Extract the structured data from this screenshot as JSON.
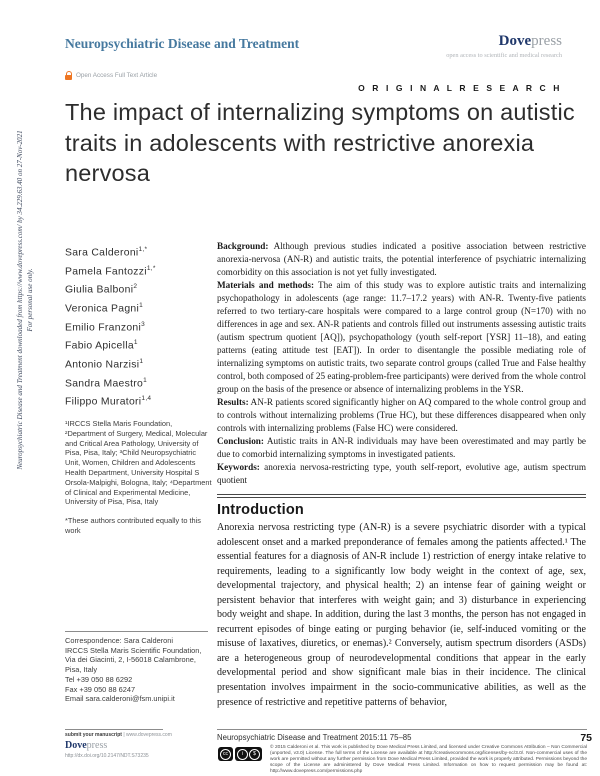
{
  "header": {
    "journal": "Neuropsychiatric Disease and Treatment",
    "brand_dove": "Dove",
    "brand_press": "press",
    "tagline": "open access to scientific and medical research",
    "open_access_label": "Open Access Full Text Article",
    "article_type": "O R I G I N A L   R E S E A R C H"
  },
  "title": "The impact of internalizing symptoms on autistic traits in adolescents with restrictive anorexia nervosa",
  "sidebar": {
    "authors": [
      {
        "name": "Sara Calderoni",
        "sup": "1,*"
      },
      {
        "name": "Pamela Fantozzi",
        "sup": "1,*"
      },
      {
        "name": "Giulia Balboni",
        "sup": "2"
      },
      {
        "name": "Veronica Pagni",
        "sup": "1"
      },
      {
        "name": "Emilio Franzoni",
        "sup": "3"
      },
      {
        "name": "Fabio Apicella",
        "sup": "1"
      },
      {
        "name": "Antonio Narzisi",
        "sup": "1"
      },
      {
        "name": "Sandra Maestro",
        "sup": "1"
      },
      {
        "name": "Filippo Muratori",
        "sup": "1,4"
      }
    ],
    "affiliations": "¹IRCCS Stella Maris Foundation, ²Department of Surgery, Medical, Molecular and Critical Area Pathology, University of Pisa, Pisa, Italy; ³Child Neuropsychiatric Unit, Women, Children and Adolescents Health Department, University Hospital S Orsola-Malpighi, Bologna, Italy; ⁴Department of Clinical and Experimental Medicine, University of Pisa, Pisa, Italy",
    "contrib_note": "*These authors contributed equally to this work",
    "correspondence_lines": [
      "Correspondence: Sara Calderoni",
      "IRCCS Stella Maris Scientific Foundation,",
      "Via dei Giacinti, 2, I-56018 Calambrone,",
      "Pisa, Italy",
      "Tel +39 050 88 6292",
      "Fax +39 050 88 6247",
      "Email sara.calderoni@fsm.unipi.it"
    ]
  },
  "abstract": {
    "sections": [
      {
        "label": "Background:",
        "text": " Although previous studies indicated a positive association between restrictive anorexia-nervosa (AN-R) and autistic traits, the potential interference of psychiatric internalizing comorbidity on this association is not yet fully investigated."
      },
      {
        "label": "Materials and methods:",
        "text": " The aim of this study was to explore autistic traits and internalizing psychopathology in adolescents (age range: 11.7–17.2 years) with AN-R. Twenty-five patients referred to two tertiary-care hospitals were compared to a large control group (N=170) with no differences in age and sex. AN-R patients and controls filled out instruments assessing autistic traits (autism spectrum quotient [AQ]), psychopathology (youth self-report [YSR] 11–18), and eating patterns (eating attitude test [EAT]). In order to disentangle the possible mediating role of internalizing symptoms on autistic traits, two separate control groups (called True and False healthy control, both composed of 25 eating-problem-free participants) were derived from the whole control group on the basis of the presence or absence of internalizing problems in the YSR."
      },
      {
        "label": "Results:",
        "text": " AN-R patients scored significantly higher on AQ compared to the whole control group and to controls without internalizing problems (True HC), but these differences disappeared when only controls with internalizing problems (False HC) were considered."
      },
      {
        "label": "Conclusion:",
        "text": " Autistic traits in AN-R individuals may have been overestimated and may partly be due to comorbid internalizing symptoms in investigated patients."
      },
      {
        "label": "Keywords:",
        "text": " anorexia nervosa-restricting type, youth self-report, evolutive age, autism spectrum quotient"
      }
    ]
  },
  "introduction": {
    "heading": "Introduction",
    "text": "Anorexia nervosa restricting type (AN-R) is a severe psychiatric disorder with a typical adolescent onset and a marked preponderance of females among the patients affected.¹ The essential features for a diagnosis of AN-R include 1) restriction of energy intake relative to requirements, leading to a significantly low body weight in the context of age, sex, developmental trajectory, and physical health; 2) an intense fear of gaining weight or persistent behavior that interferes with weight gain; and 3) disturbance in experiencing body weight and shape. In addition, during the last 3 months, the person has not engaged in recurrent episodes of binge eating or purging behavior (ie, self-induced vomiting or the misuse of laxatives, diuretics, or enemas).² Conversely, autism spectrum disorders (ASDs) are a heterogeneous group of neurodevelopmental conditions that appear in the early developmental period and show significant male bias in their incidence. The clinical presentation involves impairment in the socio-communicative abilities, as well as the presence of restrictive and repetitive patterns of behavior,"
  },
  "watermark": {
    "line1": "Neuropsychiatric Disease and Treatment downloaded from https://www.dovepress.com/ by 34.229.63.40 on 27-Nov-2021",
    "line2": "For personal use only."
  },
  "footer": {
    "submit_label": "submit your manuscript",
    "submit_separator": " | ",
    "submit_url": "www.dovepress.com",
    "brand_dove": "Dove",
    "brand_press": "press",
    "doi": "http://dx.doi.org/10.2147/NDT.S73235",
    "citation": "Neuropsychiatric Disease and Treatment 2015:11 75–85",
    "page_number": "75",
    "copyright": "© 2015 Calderoni et al. This work is published by Dove Medical Press Limited, and licensed under Creative Commons Attribution – Non Commercial (unported, v3.0) License. The full terms of the License are available at http://creativecommons.org/licenses/by-nc/3.0/. Non-commercial uses of the work are permitted without any further permission from Dove Medical Press Limited, provided the work is properly attributed. Permissions beyond the scope of the License are administered by Dove Medical Press Limited. Information on how to request permission may be found at: http://www.dovepress.com/permissions.php"
  }
}
